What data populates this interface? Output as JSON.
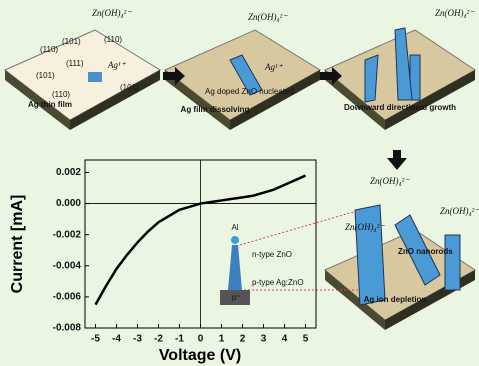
{
  "chart_data": {
    "type": "line",
    "x_label": "Voltage (V)",
    "y_label": "Current [mA]",
    "x": [
      -5,
      -4.5,
      -4,
      -3.5,
      -3,
      -2.5,
      -2,
      -1.5,
      -1,
      -0.5,
      0,
      0.5,
      1,
      1.5,
      2,
      2.5,
      3,
      3.5,
      4,
      4.5,
      5
    ],
    "series": [
      {
        "color": "#000000",
        "values": [
          -0.0065,
          -0.0053,
          -0.0042,
          -0.0033,
          -0.0025,
          -0.0018,
          -0.0012,
          -0.0008,
          -0.0004,
          -0.0002,
          0,
          0.0001,
          0.0002,
          0.0003,
          0.0004,
          0.0005,
          0.0007,
          0.0009,
          0.0012,
          0.0015,
          0.0018
        ]
      }
    ],
    "xlim": [
      -5.5,
      5.5
    ],
    "ylim": [
      -0.008,
      0.0028
    ],
    "xticks": [
      -5,
      -4,
      -3,
      -2,
      -1,
      0,
      1,
      2,
      3,
      4,
      5
    ],
    "yticks": [
      -0.008,
      -0.006,
      -0.004,
      -0.002,
      {
        "value": 0,
        "label": "0.000"
      },
      0.002
    ]
  },
  "diagram": {
    "panel1": {
      "caption": "Ag thin film",
      "ion": "Ag¹⁺",
      "complex": "Zn(OH)₄²⁻",
      "facets": [
        "(110)",
        "(101)",
        "(111)",
        "(110)",
        "(101)",
        "(110)",
        "(101)"
      ]
    },
    "panel2": {
      "caption": "Ag film dissolving",
      "note": "Ag doped ZnO nucleated",
      "ion": "Ag¹⁺",
      "complex": "Zn(OH)₄²⁻"
    },
    "panel3": {
      "caption": "Downward directional growth",
      "complex": "Zn(OH)₄²⁻"
    },
    "panel4": {
      "caption": "Ag ion depletion",
      "label": "ZnO nanorods",
      "complex": [
        "Zn(OH)₄²⁻",
        "Zn(OH)₄²⁻",
        "Zn(OH)₄²⁻"
      ]
    },
    "inset": {
      "top": "Al",
      "n": "n-type ZnO",
      "p": "p-type Ag:ZnO",
      "sub": "p⁺"
    }
  }
}
